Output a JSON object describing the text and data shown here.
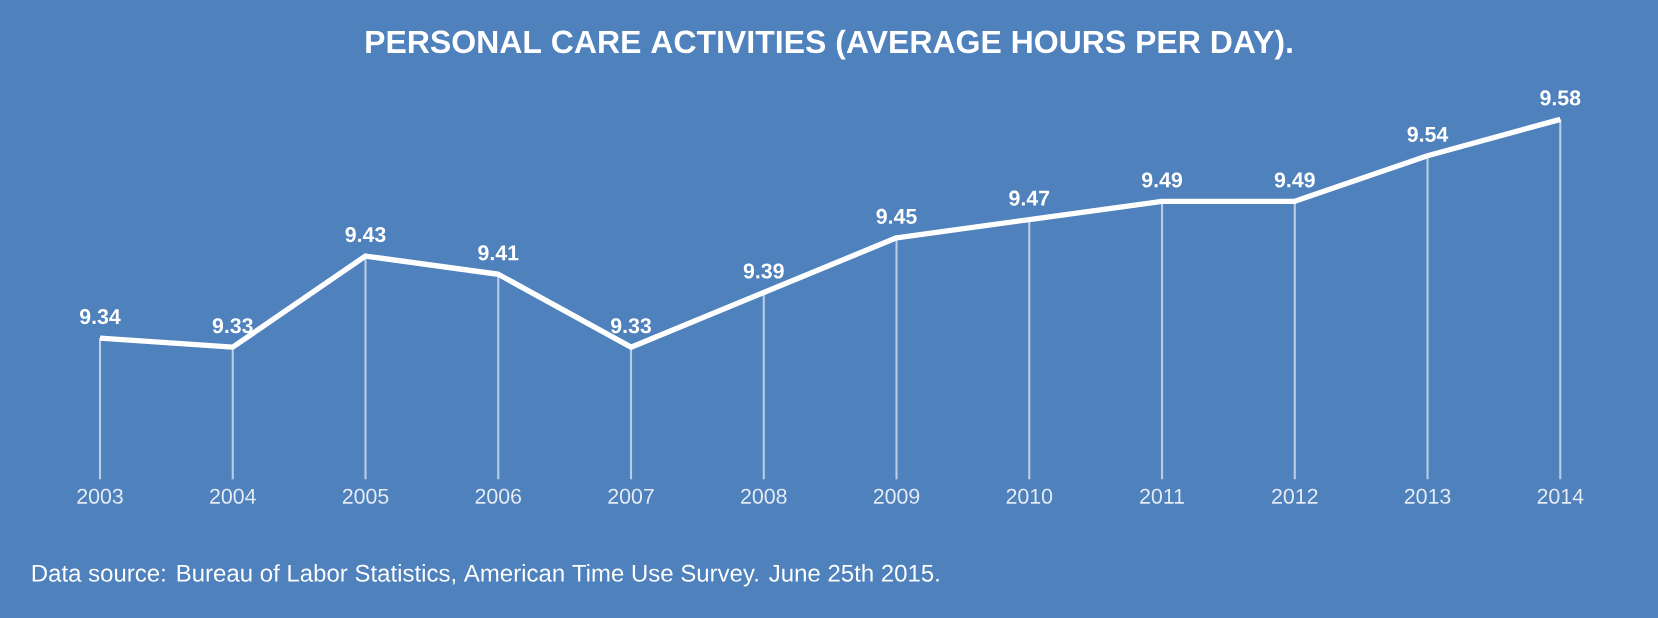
{
  "chart_data": {
    "type": "line",
    "title": "PERSONAL CARE ACTIVITIES (AVERAGE HOURS PER DAY).",
    "categories": [
      "2003",
      "2004",
      "2005",
      "2006",
      "2007",
      "2008",
      "2009",
      "2010",
      "2011",
      "2012",
      "2013",
      "2014"
    ],
    "values": [
      9.34,
      9.33,
      9.43,
      9.41,
      9.33,
      9.39,
      9.45,
      9.47,
      9.49,
      9.49,
      9.54,
      9.58
    ],
    "color": "#ffffff",
    "data_labels": true,
    "grid": "x",
    "annotations": [
      "Data source: Bureau of Labor Statistics, American Time Use Survey. June 25th 2015."
    ]
  }
}
